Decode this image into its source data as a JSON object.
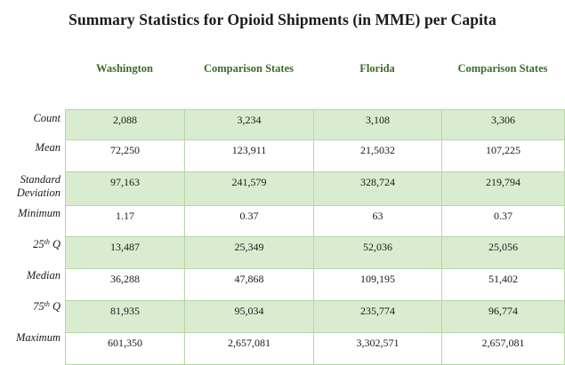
{
  "title": "Summary Statistics for Opioid Shipments (in MME) per Capita",
  "columns": [
    "Washington",
    "Comparison States",
    "Florida",
    "Comparison States"
  ],
  "rows": [
    {
      "label": "Count",
      "values": [
        "2,088",
        "3,234",
        "3,108",
        "3,306"
      ]
    },
    {
      "label": "Mean",
      "values": [
        "72,250",
        "123,911",
        "21,5032",
        "107,225"
      ]
    },
    {
      "label": "Standard Deviation",
      "values": [
        "97,163",
        "241,579",
        "328,724",
        "219,794"
      ]
    },
    {
      "label": "Minimum",
      "values": [
        "1.17",
        "0.37",
        "63",
        "0.37"
      ]
    },
    {
      "label_prefix": "25",
      "label_sup": "th",
      "label_suffix": "Q",
      "values": [
        "13,487",
        "25,349",
        "52,036",
        "25,056"
      ]
    },
    {
      "label": "Median",
      "values": [
        "36,288",
        "47,868",
        "109,195",
        "51,402"
      ]
    },
    {
      "label_prefix": "75",
      "label_sup": "th",
      "label_suffix": "Q",
      "values": [
        "81,935",
        "95,034",
        "235,774",
        "96,774"
      ]
    },
    {
      "label": "Maximum",
      "values": [
        "601,350",
        "2,657,081",
        "3,302,571",
        "2,657,081"
      ]
    }
  ]
}
